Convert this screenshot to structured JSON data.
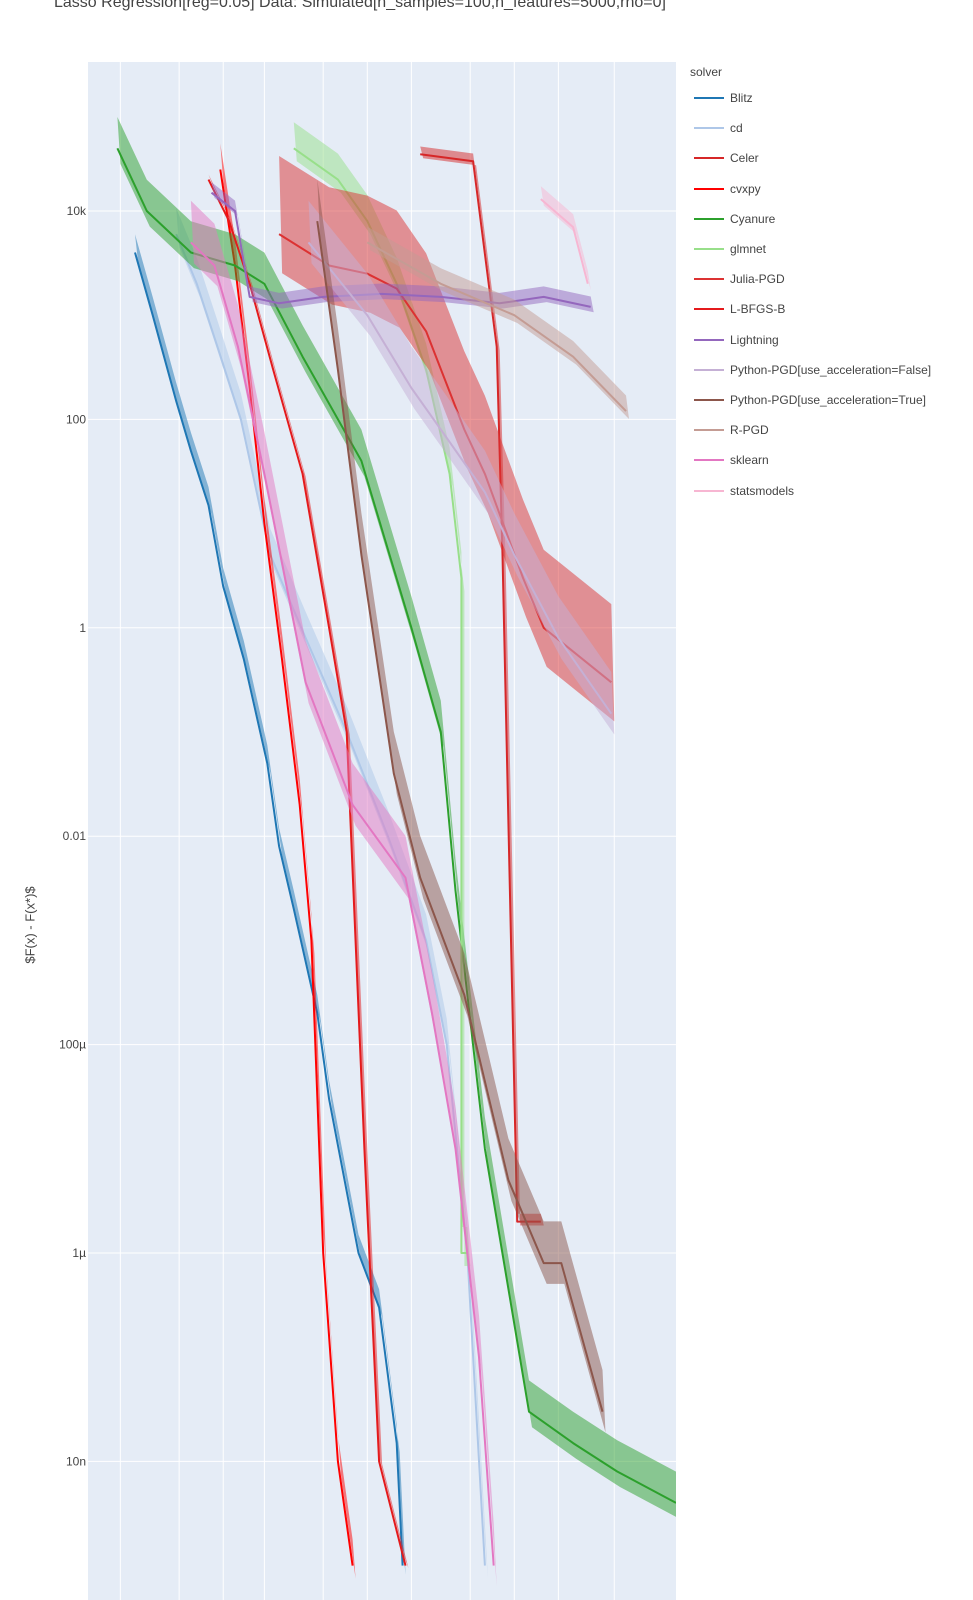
{
  "chart_data": {
    "type": "line",
    "title": "Lasso Regression[reg=0.05] Data: Simulated[n_samples=100,n_features=5000,rho=0]",
    "xlabel": "",
    "ylabel": "$F(x) - F(x*)$",
    "yscale": "log",
    "ylim": [
      1e-09,
      200000
    ],
    "xlim": [
      0,
      20
    ],
    "grid": true,
    "y_ticks": [
      {
        "value": 10000,
        "label": "10k"
      },
      {
        "value": 100,
        "label": "100"
      },
      {
        "value": 1,
        "label": "1"
      },
      {
        "value": 0.01,
        "label": "0.01"
      },
      {
        "value": 0.0001,
        "label": "100µ"
      },
      {
        "value": 1e-06,
        "label": "1µ"
      },
      {
        "value": 1e-08,
        "label": "10n"
      }
    ],
    "x_gridlines": [
      1.1,
      3.1,
      4.6,
      6.0,
      8.0,
      9.5,
      11.0,
      13.0,
      14.5,
      16.0,
      17.9
    ],
    "legend_title": "solver",
    "legend_position": "right",
    "series": [
      {
        "name": "Blitz",
        "color": "#1f77b4",
        "band": 0.35,
        "x": [
          1.6,
          2.2,
          3.0,
          3.5,
          4.1,
          4.6,
          5.3,
          6.1,
          6.5,
          7.0,
          7.8,
          8.2,
          9.2,
          9.9,
          10.5,
          10.7
        ],
        "y": [
          4000,
          1000,
          150,
          50,
          15,
          2.5,
          0.5,
          0.05,
          0.008,
          0.002,
          0.0002,
          3e-05,
          1e-06,
          3e-07,
          1.5e-08,
          1e-09
        ]
      },
      {
        "name": "cd",
        "color": "#aec7e8",
        "band": 0.5,
        "x": [
          3.0,
          3.7,
          4.4,
          5.2,
          6.2,
          7.4,
          8.8,
          10.2,
          11.5,
          12.2,
          12.9,
          13.5
        ],
        "y": [
          6000,
          2000,
          500,
          100,
          5,
          0.8,
          0.1,
          0.01,
          0.001,
          0.0001,
          1e-06,
          1e-09
        ]
      },
      {
        "name": "Celer",
        "color": "#d62728",
        "band": 0.15,
        "x": [
          11.3,
          13.1,
          13.9,
          14.1,
          14.6,
          15.4
        ],
        "y": [
          35000,
          30000,
          500,
          5,
          2e-06,
          2e-06
        ]
      },
      {
        "name": "cvxpy",
        "color": "#ff0000",
        "band": 0.5,
        "x": [
          4.5,
          5.0,
          5.5,
          6.0,
          6.6,
          7.2,
          7.6,
          8.0,
          8.5,
          9.0
        ],
        "y": [
          25000,
          3000,
          200,
          10,
          0.5,
          0.02,
          0.001,
          1e-06,
          1e-08,
          1e-09
        ]
      },
      {
        "name": "Cyanure",
        "color": "#2ca02c",
        "band": 0.6,
        "x": [
          1.0,
          2.0,
          3.5,
          5.0,
          6.0,
          7.3,
          9.3,
          11.0,
          12.0,
          12.5,
          13.5,
          15.0,
          16.5,
          18.0,
          20.0
        ],
        "y": [
          40000,
          10000,
          4000,
          3000,
          2000,
          400,
          40,
          1,
          0.1,
          0.003,
          1e-05,
          3e-08,
          1.5e-08,
          8e-09,
          4e-09
        ]
      },
      {
        "name": "glmnet",
        "color": "#98df8a",
        "band": 0.5,
        "x": [
          7.0,
          8.5,
          9.5,
          10.5,
          11.5,
          12.3,
          12.7,
          12.7,
          12.7,
          12.9
        ],
        "y": [
          40000,
          20000,
          8000,
          2000,
          300,
          30,
          3,
          0.01,
          1e-06,
          1e-06
        ]
      },
      {
        "name": "Julia-PGD",
        "color": "#dc3232",
        "band": 1.5,
        "x": [
          6.5,
          8.2,
          9.5,
          10.5,
          11.5,
          12.8,
          13.5,
          14.8,
          15.5,
          17.8
        ],
        "y": [
          6000,
          3000,
          2500,
          1800,
          700,
          80,
          30,
          3,
          1,
          0.3
        ]
      },
      {
        "name": "L-BFGS-B",
        "color": "#e41a1c",
        "band": 0.1,
        "x": [
          4.1,
          4.8,
          5.5,
          6.3,
          7.3,
          8.2,
          8.8,
          9.4,
          9.9,
          10.8
        ],
        "y": [
          20000,
          8000,
          2000,
          300,
          30,
          1,
          0.1,
          1e-05,
          1e-08,
          1e-09
        ]
      },
      {
        "name": "Lightning",
        "color": "#9467bd",
        "band": 0.2,
        "x": [
          4.2,
          5.0,
          5.5,
          6.5,
          8.0,
          10.0,
          12.0,
          14.0,
          15.5,
          17.1
        ],
        "y": [
          15000,
          10000,
          1500,
          1300,
          1500,
          1600,
          1500,
          1300,
          1500,
          1200
        ]
      },
      {
        "name": "Python-PGD[use_acceleration=False]",
        "color": "#c5b0d5",
        "band": 0.8,
        "x": [
          7.5,
          9.5,
          11.0,
          12.0,
          13.5,
          14.5,
          16.0,
          17.8
        ],
        "y": [
          5000,
          1000,
          200,
          80,
          20,
          5,
          0.8,
          0.15
        ]
      },
      {
        "name": "Python-PGD[use_acceleration=True]",
        "color": "#8c564b",
        "band": 0.8,
        "x": [
          7.8,
          8.5,
          9.3,
          10.4,
          11.3,
          12.8,
          14.3,
          15.5,
          16.1,
          17.5
        ],
        "y": [
          8000,
          300,
          5,
          0.04,
          0.004,
          0.0003,
          5e-06,
          8e-07,
          8e-07,
          3e-08
        ]
      },
      {
        "name": "R-PGD",
        "color": "#c49c94",
        "band": 0.3,
        "x": [
          9.5,
          12.0,
          14.5,
          16.5,
          18.3
        ],
        "y": [
          5000,
          2000,
          1000,
          400,
          120
        ]
      },
      {
        "name": "sklearn",
        "color": "#e377c2",
        "band": 0.8,
        "x": [
          3.5,
          4.3,
          5.1,
          6.0,
          7.4,
          9.0,
          10.8,
          11.7,
          12.5,
          13.3,
          13.8
        ],
        "y": [
          5000,
          3000,
          500,
          30,
          0.3,
          0.02,
          0.004,
          0.0002,
          1e-05,
          1e-07,
          1e-09
        ]
      },
      {
        "name": "statsmodels",
        "color": "#f7b6d2",
        "band": 0.25,
        "x": [
          15.4,
          16.5,
          17.0
        ],
        "y": [
          13000,
          7000,
          2000
        ]
      }
    ]
  }
}
